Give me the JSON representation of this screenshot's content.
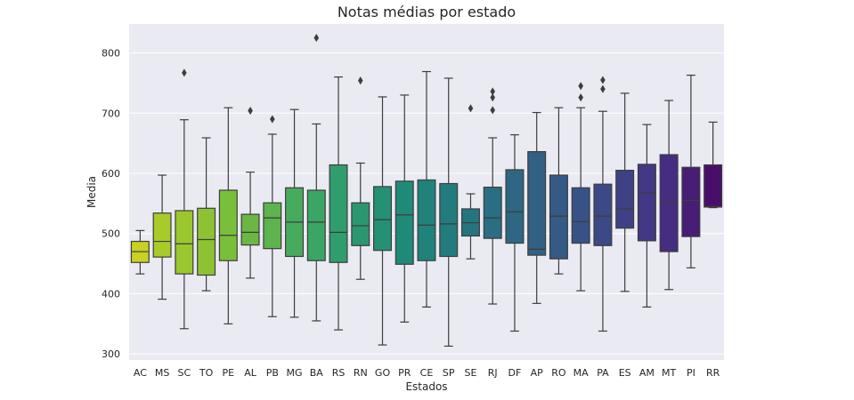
{
  "chart_data": {
    "type": "box",
    "title": "Notas médias por estado",
    "xlabel": "Estados",
    "ylabel": "Media",
    "ylim": [
      290,
      848
    ],
    "yticks": [
      300,
      400,
      500,
      600,
      700,
      800
    ],
    "grid": true,
    "background": "#eaeaf2",
    "categories": [
      "AC",
      "MS",
      "SC",
      "TO",
      "PE",
      "AL",
      "PB",
      "MG",
      "BA",
      "RS",
      "RN",
      "GO",
      "PR",
      "CE",
      "SP",
      "SE",
      "RJ",
      "DF",
      "AP",
      "RO",
      "MA",
      "PA",
      "ES",
      "AM",
      "MT",
      "PI",
      "RR"
    ],
    "colors": [
      "#c8d124",
      "#a9cb2a",
      "#9ac72e",
      "#8dc332",
      "#7abf39",
      "#6ab843",
      "#5db34d",
      "#47ab5e",
      "#3ba565",
      "#2f9e6c",
      "#2a9770",
      "#249074",
      "#208a78",
      "#1f837c",
      "#227c7e",
      "#257580",
      "#296e82",
      "#2d6783",
      "#316084",
      "#345a85",
      "#375286",
      "#3b4a86",
      "#3f4186",
      "#423885",
      "#452d82",
      "#471d75",
      "#480f6a"
    ],
    "boxes": [
      {
        "whisker_low": 433,
        "q1": 452,
        "median": 470,
        "q3": 487,
        "whisker_high": 505,
        "outliers": []
      },
      {
        "whisker_low": 391,
        "q1": 461,
        "median": 487,
        "q3": 534,
        "whisker_high": 597,
        "outliers": []
      },
      {
        "whisker_low": 342,
        "q1": 433,
        "median": 483,
        "q3": 538,
        "whisker_high": 689,
        "outliers": [
          767
        ]
      },
      {
        "whisker_low": 405,
        "q1": 431,
        "median": 490,
        "q3": 542,
        "whisker_high": 659,
        "outliers": []
      },
      {
        "whisker_low": 350,
        "q1": 455,
        "median": 497,
        "q3": 572,
        "whisker_high": 709,
        "outliers": []
      },
      {
        "whisker_low": 426,
        "q1": 481,
        "median": 502,
        "q3": 532,
        "whisker_high": 602,
        "outliers": [
          704
        ]
      },
      {
        "whisker_low": 362,
        "q1": 475,
        "median": 526,
        "q3": 551,
        "whisker_high": 665,
        "outliers": [
          690
        ]
      },
      {
        "whisker_low": 361,
        "q1": 462,
        "median": 519,
        "q3": 576,
        "whisker_high": 706,
        "outliers": []
      },
      {
        "whisker_low": 355,
        "q1": 455,
        "median": 519,
        "q3": 572,
        "whisker_high": 682,
        "outliers": [
          825
        ]
      },
      {
        "whisker_low": 340,
        "q1": 452,
        "median": 502,
        "q3": 614,
        "whisker_high": 760,
        "outliers": []
      },
      {
        "whisker_low": 424,
        "q1": 480,
        "median": 513,
        "q3": 551,
        "whisker_high": 617,
        "outliers": [
          754
        ]
      },
      {
        "whisker_low": 315,
        "q1": 472,
        "median": 523,
        "q3": 578,
        "whisker_high": 727,
        "outliers": []
      },
      {
        "whisker_low": 353,
        "q1": 449,
        "median": 531,
        "q3": 587,
        "whisker_high": 730,
        "outliers": []
      },
      {
        "whisker_low": 378,
        "q1": 455,
        "median": 514,
        "q3": 589,
        "whisker_high": 769,
        "outliers": []
      },
      {
        "whisker_low": 313,
        "q1": 462,
        "median": 516,
        "q3": 583,
        "whisker_high": 758,
        "outliers": []
      },
      {
        "whisker_low": 458,
        "q1": 496,
        "median": 518,
        "q3": 541,
        "whisker_high": 566,
        "outliers": [
          708
        ]
      },
      {
        "whisker_low": 383,
        "q1": 492,
        "median": 526,
        "q3": 577,
        "whisker_high": 659,
        "outliers": [
          705,
          726,
          736
        ]
      },
      {
        "whisker_low": 338,
        "q1": 484,
        "median": 536,
        "q3": 606,
        "whisker_high": 664,
        "outliers": []
      },
      {
        "whisker_low": 384,
        "q1": 464,
        "median": 474,
        "q3": 636,
        "whisker_high": 701,
        "outliers": []
      },
      {
        "whisker_low": 433,
        "q1": 458,
        "median": 529,
        "q3": 597,
        "whisker_high": 709,
        "outliers": []
      },
      {
        "whisker_low": 405,
        "q1": 484,
        "median": 520,
        "q3": 576,
        "whisker_high": 709,
        "outliers": [
          726,
          745
        ]
      },
      {
        "whisker_low": 338,
        "q1": 480,
        "median": 529,
        "q3": 582,
        "whisker_high": 703,
        "outliers": [
          740,
          755
        ]
      },
      {
        "whisker_low": 404,
        "q1": 509,
        "median": 541,
        "q3": 605,
        "whisker_high": 733,
        "outliers": []
      },
      {
        "whisker_low": 378,
        "q1": 488,
        "median": 568,
        "q3": 615,
        "whisker_high": 681,
        "outliers": []
      },
      {
        "whisker_low": 407,
        "q1": 470,
        "median": 552,
        "q3": 631,
        "whisker_high": 721,
        "outliers": []
      },
      {
        "whisker_low": 443,
        "q1": 495,
        "median": 555,
        "q3": 610,
        "whisker_high": 763,
        "outliers": []
      },
      {
        "whisker_low": 543,
        "q1": 544,
        "median": 545,
        "q3": 614,
        "whisker_high": 685,
        "outliers": []
      }
    ]
  }
}
